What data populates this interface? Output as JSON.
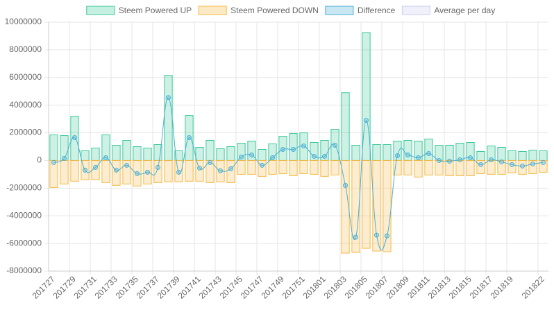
{
  "chart_data": {
    "type": "bar",
    "categories": [
      "201727",
      null,
      "201729",
      null,
      "201731",
      null,
      "201733",
      null,
      "201735",
      null,
      "201737",
      null,
      "201739",
      null,
      "201741",
      null,
      "201743",
      null,
      "201745",
      null,
      "201747",
      null,
      "201749",
      null,
      "201751",
      null,
      "201801",
      null,
      "201803",
      null,
      "201805",
      null,
      "201807",
      null,
      "201809",
      null,
      "201811",
      null,
      "201813",
      null,
      "201815",
      null,
      "201817",
      null,
      "201819",
      null,
      null,
      "201822"
    ],
    "series": [
      {
        "name": "Steem Powered UP",
        "type": "bar",
        "color": "#3cc99a",
        "values": [
          1850000,
          1800000,
          3200000,
          700000,
          900000,
          1850000,
          1100000,
          1450000,
          1000000,
          900000,
          1150000,
          6150000,
          700000,
          3250000,
          950000,
          1450000,
          850000,
          1000000,
          1250000,
          1400000,
          800000,
          1200000,
          1750000,
          1950000,
          2000000,
          1300000,
          1450000,
          2250000,
          4900000,
          1100000,
          9250000,
          1150000,
          1150000,
          1400000,
          1450000,
          1400000,
          1550000,
          1100000,
          1100000,
          1250000,
          1300000,
          650000,
          1050000,
          950000,
          700000,
          650000,
          750000,
          700000
        ]
      },
      {
        "name": "Steem Powered DOWN",
        "type": "bar",
        "color": "#f5b942",
        "values": [
          -1950000,
          -1700000,
          -1500000,
          -1400000,
          -1400000,
          -1600000,
          -1800000,
          -1700000,
          -1850000,
          -1700000,
          -1600000,
          -1550000,
          -1550000,
          -1500000,
          -1500000,
          -1600000,
          -1550000,
          -1600000,
          -1000000,
          -1000000,
          -1150000,
          -1000000,
          -950000,
          -1100000,
          -950000,
          -1000000,
          -1150000,
          -1050000,
          -6700000,
          -6650000,
          -6350000,
          -6550000,
          -6600000,
          -1050000,
          -1050000,
          -1200000,
          -1050000,
          -1050000,
          -1100000,
          -1100000,
          -1100000,
          -950000,
          -1000000,
          -1000000,
          -900000,
          -1000000,
          -950000,
          -850000
        ]
      },
      {
        "name": "Difference",
        "type": "line",
        "color": "#4aaed4",
        "values": [
          -150000,
          150000,
          1650000,
          -700000,
          -500000,
          200000,
          -700000,
          -350000,
          -950000,
          -850000,
          -500000,
          4550000,
          -850000,
          1650000,
          -550000,
          -150000,
          -750000,
          -600000,
          250000,
          400000,
          -350000,
          200000,
          800000,
          800000,
          1050000,
          300000,
          300000,
          1100000,
          -1800000,
          -5550000,
          2900000,
          -5400000,
          -5450000,
          350000,
          400000,
          200000,
          500000,
          0,
          -50000,
          50000,
          200000,
          -300000,
          50000,
          -100000,
          -300000,
          -400000,
          -250000,
          -150000
        ]
      },
      {
        "name": "Average per day",
        "type": "line",
        "color": "#c8cdf0",
        "values": [
          null,
          null,
          null,
          null,
          null,
          null,
          null,
          null,
          null,
          null,
          null,
          null,
          null,
          null,
          null,
          null,
          null,
          null,
          null,
          null,
          null,
          null,
          null,
          null,
          null,
          null,
          null,
          null,
          null,
          null,
          null,
          null,
          null,
          null,
          null,
          null,
          null,
          null,
          null,
          null,
          null,
          null,
          null,
          null,
          null,
          null,
          null,
          null
        ]
      }
    ],
    "ylim": [
      -8000000,
      10000000
    ],
    "yticks": [
      -8000000,
      -6000000,
      -4000000,
      -2000000,
      0,
      2000000,
      4000000,
      6000000,
      8000000,
      10000000
    ],
    "grid": true,
    "legend": "top"
  }
}
